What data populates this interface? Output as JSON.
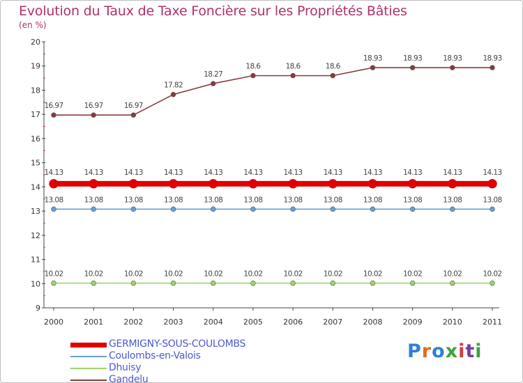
{
  "title": "Evolution du Taux de Taxe Foncière sur les Propriétés Bâties",
  "subtitle": "(en %)",
  "logo": {
    "text": "Proxiti",
    "colors": [
      "#2f7fd6",
      "#e86b1c",
      "#2f7fd6",
      "#3aa33a",
      "#d43a3a",
      "#7a3aa3",
      "#3aa33a"
    ]
  },
  "chart_data": {
    "type": "line",
    "title": "Evolution du Taux de Taxe Foncière sur les Propriétés Bâties",
    "ylabel": "(en %)",
    "xlabel": "",
    "x": [
      "2000",
      "2001",
      "2002",
      "2003",
      "2004",
      "2005",
      "2006",
      "2007",
      "2008",
      "2009",
      "2010",
      "2011"
    ],
    "ylim": [
      9,
      20
    ],
    "yticks": [
      9,
      10,
      11,
      12,
      13,
      14,
      15,
      16,
      17,
      18,
      19,
      20
    ],
    "grid": false,
    "series": [
      {
        "name": "GERMIGNY-SOUS-COULOMBS",
        "color": "#e00000",
        "values": [
          14.13,
          14.13,
          14.13,
          14.13,
          14.13,
          14.13,
          14.13,
          14.13,
          14.13,
          14.13,
          14.13,
          14.13
        ],
        "labels": [
          "14.13",
          "14.13",
          "14.13",
          "14.13",
          "14.13",
          "14.13",
          "14.13",
          "14.13",
          "14.13",
          "14.13",
          "14.13",
          "14.13"
        ]
      },
      {
        "name": "Coulombs-en-Valois",
        "color": "#6a9fd4",
        "values": [
          13.08,
          13.08,
          13.08,
          13.08,
          13.08,
          13.08,
          13.08,
          13.08,
          13.08,
          13.08,
          13.08,
          13.08
        ],
        "labels": [
          "13.08",
          "13.08",
          "13.08",
          "13.08",
          "13.08",
          "13.08",
          "13.08",
          "13.08",
          "13.08",
          "13.08",
          "13.08",
          "13.08"
        ]
      },
      {
        "name": "Dhuisy",
        "color": "#9ed46a",
        "values": [
          10.02,
          10.02,
          10.02,
          10.02,
          10.02,
          10.02,
          10.02,
          10.02,
          10.02,
          10.02,
          10.02,
          10.02
        ],
        "labels": [
          "10.02",
          "10.02",
          "10.02",
          "10.02",
          "10.02",
          "10.02",
          "10.02",
          "10.02",
          "10.02",
          "10.02",
          "10.02",
          "10.02"
        ]
      },
      {
        "name": "Gandelu",
        "color": "#8a3a3a",
        "values": [
          16.97,
          16.97,
          16.97,
          17.82,
          18.27,
          18.6,
          18.6,
          18.6,
          18.93,
          18.93,
          18.93,
          18.93
        ],
        "labels": [
          "16.97",
          "16.97",
          "16.97",
          "17.82",
          "18.27",
          "18.6",
          "18.6",
          "18.6",
          "18.93",
          "18.93",
          "18.93",
          "18.93"
        ]
      }
    ]
  }
}
